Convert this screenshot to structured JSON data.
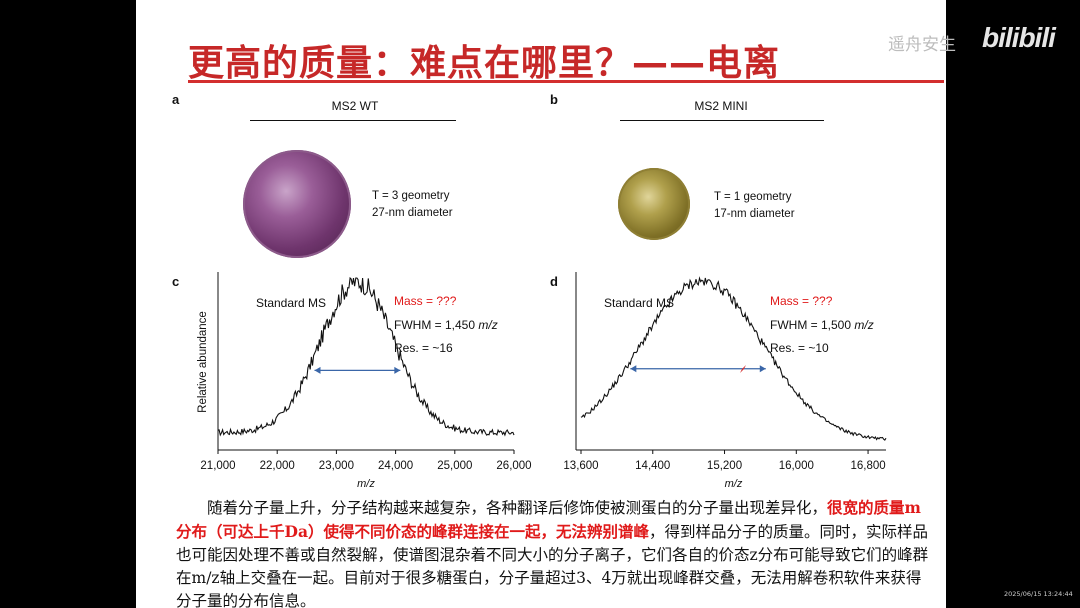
{
  "slide": {
    "title": "更高的质量：难点在哪里？——电离",
    "panels": {
      "a": {
        "letter": "a",
        "heading": "MS2 WT",
        "geometry": "T = 3 geometry",
        "diameter": "27-nm diameter"
      },
      "b": {
        "letter": "b",
        "heading": "MS2 MINI",
        "geometry": "T = 1 geometry",
        "diameter": "17-nm diameter"
      },
      "c": {
        "letter": "c"
      },
      "d": {
        "letter": "d"
      }
    },
    "body": {
      "line1": "随着分子量上升，分子结构越来越复杂，各种翻译后修饰使被测蛋白的分子量出现差异化，",
      "red_segment": "很宽的质量m分布（可达上千Da）使得不同价态的峰群连接在一起，无法辨别谱峰",
      "after_red": "，得到样品分子的质量。同时，实际样品也可能因处理不善或自然裂解，使谱图混杂着不同大小的分子离子，它们各自的价态z分布可能导致它们的峰群在m/z轴上交叠在一起。目前对于很多糖蛋白，分子量超过3、4万就出现峰群交叠，无法用解卷积软件来获得分子量的分布信息。"
    }
  },
  "overlay": {
    "watermark": "遥舟安生",
    "logo": "bilibili",
    "timestamp": "2025/06/15 13:24:44"
  },
  "colors": {
    "title_red": "#c62828",
    "mass_red": "#e01a1a",
    "arrow_blue": "#3a66a8",
    "virus_wt": "#7a3f78",
    "virus_mini": "#8a7a2c"
  },
  "chart_data": [
    {
      "type": "line",
      "panel": "c",
      "label": "Standard MS",
      "mass_label": "Mass = ???",
      "fwhm_label": "FWHM = 1,450",
      "fwhm_unit": "m/z",
      "res_label": "Res. = ~16",
      "ylabel": "Relative abundance",
      "xlabel": "m/z",
      "xlim": [
        21000,
        26000
      ],
      "ylim": [
        0,
        1
      ],
      "xticks": [
        21000,
        22000,
        23000,
        24000,
        25000,
        26000
      ],
      "xtick_labels": [
        "21,000",
        "22,000",
        "23,000",
        "24,000",
        "25,000",
        "26,000"
      ],
      "peak_center": 23350,
      "peak_sigma": 620,
      "baseline": 0.08,
      "fwhm_arrow": [
        22630,
        24080
      ],
      "fwhm_level": 0.45
    },
    {
      "type": "line",
      "panel": "d",
      "label": "Standard MS",
      "mass_label": "Mass = ???",
      "fwhm_label": "FWHM = 1,500",
      "fwhm_unit": "m/z",
      "res_label": "Res. = ~10",
      "ylabel": "",
      "xlabel": "m/z",
      "xlim": [
        13600,
        17000
      ],
      "ylim": [
        0,
        1
      ],
      "xticks": [
        13600,
        14400,
        15200,
        16000,
        16800
      ],
      "xtick_labels": [
        "13,600",
        "14,400",
        "15,200",
        "16,000",
        "16,800"
      ],
      "peak_center": 14950,
      "peak_sigma": 680,
      "baseline": 0.03,
      "fwhm_arrow": [
        14150,
        15660
      ],
      "fwhm_level": 0.46
    }
  ]
}
